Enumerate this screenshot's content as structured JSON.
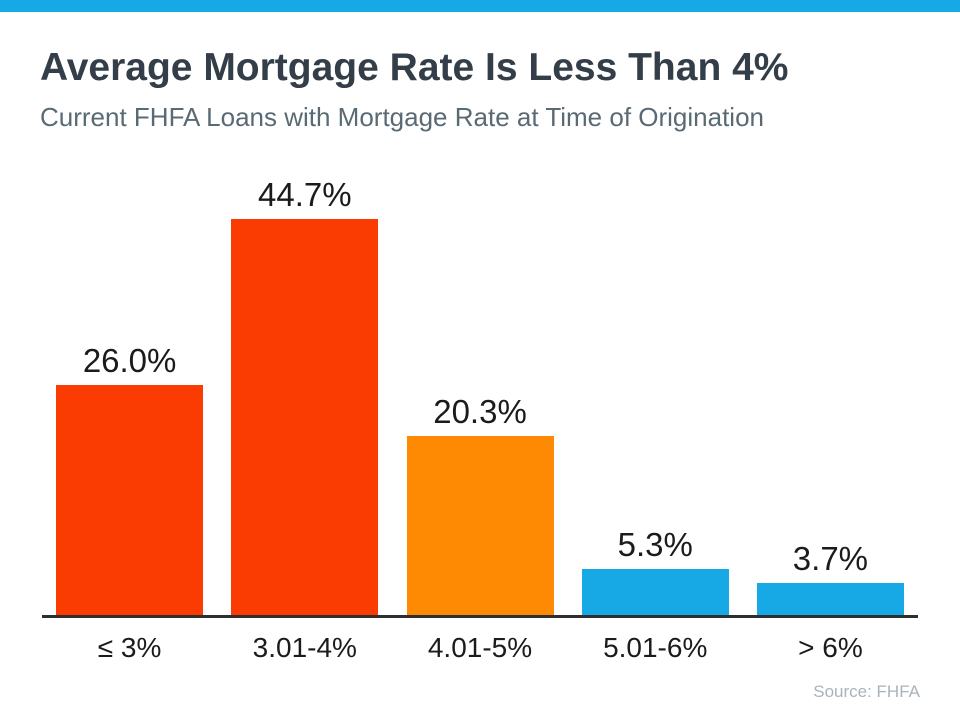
{
  "page": {
    "accent_strip_color": "#17A9E5",
    "title": "Average Mortgage Rate Is Less Than 4%",
    "subtitle": "Current FHFA Loans with Mortgage Rate at Time of Origination",
    "source": "Source: FHFA"
  },
  "chart_data": {
    "type": "bar",
    "title": "Average Mortgage Rate Is Less Than 4%",
    "subtitle": "Current FHFA Loans with Mortgage Rate at Time of Origination",
    "categories": [
      "≤ 3%",
      "3.01-4%",
      "4.01-5%",
      "5.01-6%",
      "> 6%"
    ],
    "values": [
      26.0,
      44.7,
      20.3,
      5.3,
      3.7
    ],
    "value_labels": [
      "26.0%",
      "44.7%",
      "20.3%",
      "5.3%",
      "3.7%"
    ],
    "bar_colors": [
      "#FB3C02",
      "#FB3C02",
      "#FE8A03",
      "#17A9E5",
      "#17A9E5"
    ],
    "ylabel": "",
    "xlabel": "",
    "ylim": [
      0,
      50
    ],
    "grid": false,
    "legend": false,
    "source": "Source: FHFA"
  }
}
